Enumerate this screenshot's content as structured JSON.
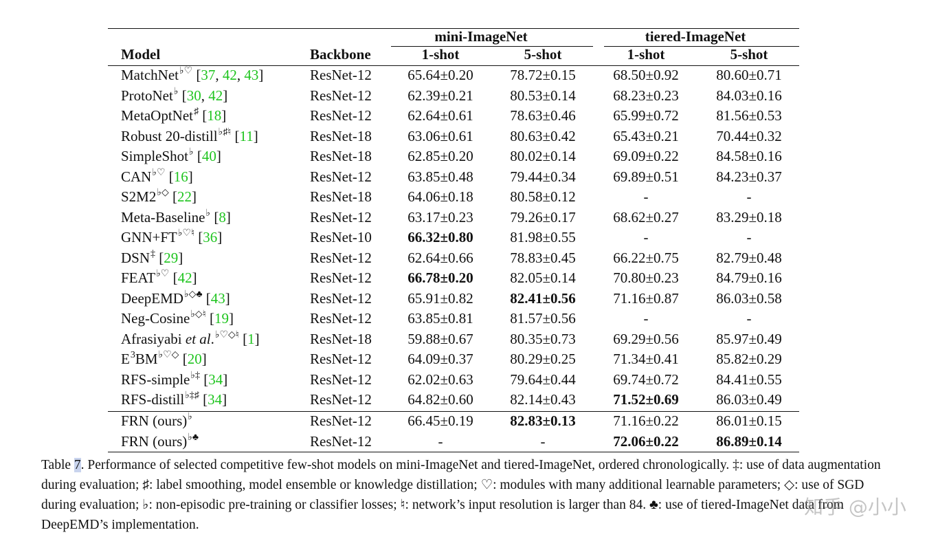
{
  "header": {
    "group_mini": "mini-ImageNet",
    "group_tiered": "tiered-ImageNet",
    "model": "Model",
    "backbone": "Backbone",
    "one_shot": "1-shot",
    "five_shot": "5-shot"
  },
  "rows": [
    {
      "name": "MatchNet",
      "sup": "♭♡",
      "refs": [
        "37",
        "42",
        "43"
      ],
      "backbone": "ResNet-12",
      "values": [
        "65.64±0.20",
        "78.72±0.15",
        "68.50±0.92",
        "80.60±0.71"
      ],
      "bold": [
        false,
        false,
        false,
        false
      ]
    },
    {
      "name": "ProtoNet",
      "sup": "♭",
      "refs": [
        "30",
        "42"
      ],
      "backbone": "ResNet-12",
      "values": [
        "62.39±0.21",
        "80.53±0.14",
        "68.23±0.23",
        "84.03±0.16"
      ],
      "bold": [
        false,
        false,
        false,
        false
      ]
    },
    {
      "name": "MetaOptNet",
      "sup": "♯",
      "refs": [
        "18"
      ],
      "backbone": "ResNet-12",
      "values": [
        "62.64±0.61",
        "78.63±0.46",
        "65.99±0.72",
        "81.56±0.53"
      ],
      "bold": [
        false,
        false,
        false,
        false
      ]
    },
    {
      "name": "Robust 20-distill",
      "sup": "♭♯♮",
      "refs": [
        "11"
      ],
      "backbone": "ResNet-18",
      "values": [
        "63.06±0.61",
        "80.63±0.42",
        "65.43±0.21",
        "70.44±0.32"
      ],
      "bold": [
        false,
        false,
        false,
        false
      ]
    },
    {
      "name": "SimpleShot",
      "sup": "♭",
      "refs": [
        "40"
      ],
      "backbone": "ResNet-18",
      "values": [
        "62.85±0.20",
        "80.02±0.14",
        "69.09±0.22",
        "84.58±0.16"
      ],
      "bold": [
        false,
        false,
        false,
        false
      ]
    },
    {
      "name": "CAN",
      "sup": "♭♡",
      "refs": [
        "16"
      ],
      "backbone": "ResNet-12",
      "values": [
        "63.85±0.48",
        "79.44±0.34",
        "69.89±0.51",
        "84.23±0.37"
      ],
      "bold": [
        false,
        false,
        false,
        false
      ]
    },
    {
      "name": "S2M2",
      "sup": "♭◇",
      "refs": [
        "22"
      ],
      "backbone": "ResNet-18",
      "values": [
        "64.06±0.18",
        "80.58±0.12",
        "-",
        "-"
      ],
      "bold": [
        false,
        false,
        false,
        false
      ]
    },
    {
      "name": "Meta-Baseline",
      "sup": "♭",
      "refs": [
        "8"
      ],
      "backbone": "ResNet-12",
      "values": [
        "63.17±0.23",
        "79.26±0.17",
        "68.62±0.27",
        "83.29±0.18"
      ],
      "bold": [
        false,
        false,
        false,
        false
      ]
    },
    {
      "name": "GNN+FT",
      "sup": "♭♡♮",
      "refs": [
        "36"
      ],
      "backbone": "ResNet-10",
      "values": [
        "66.32±0.80",
        "81.98±0.55",
        "-",
        "-"
      ],
      "bold": [
        true,
        false,
        false,
        false
      ]
    },
    {
      "name": "DSN",
      "sup": "‡",
      "refs": [
        "29"
      ],
      "backbone": "ResNet-12",
      "values": [
        "62.64±0.66",
        "78.83±0.45",
        "66.22±0.75",
        "82.79±0.48"
      ],
      "bold": [
        false,
        false,
        false,
        false
      ]
    },
    {
      "name": "FEAT",
      "sup": "♭♡",
      "refs": [
        "42"
      ],
      "backbone": "ResNet-12",
      "values": [
        "66.78±0.20",
        "82.05±0.14",
        "70.80±0.23",
        "84.79±0.16"
      ],
      "bold": [
        true,
        false,
        false,
        false
      ]
    },
    {
      "name": "DeepEMD",
      "sup": "♭◇♣",
      "refs": [
        "43"
      ],
      "backbone": "ResNet-12",
      "values": [
        "65.91±0.82",
        "82.41±0.56",
        "71.16±0.87",
        "86.03±0.58"
      ],
      "bold": [
        false,
        true,
        false,
        false
      ]
    },
    {
      "name": "Neg-Cosine",
      "sup": "♭◇♮",
      "refs": [
        "19"
      ],
      "backbone": "ResNet-12",
      "values": [
        "63.85±0.81",
        "81.57±0.56",
        "-",
        "-"
      ],
      "bold": [
        false,
        false,
        false,
        false
      ]
    },
    {
      "name": "Afrasiyabi ",
      "name_italic": "et al",
      "name_tail": ".",
      "sup": "♭♡◇♮",
      "refs": [
        "1"
      ],
      "backbone": "ResNet-18",
      "values": [
        "59.88±0.67",
        "80.35±0.73",
        "69.29±0.56",
        "85.97±0.49"
      ],
      "bold": [
        false,
        false,
        false,
        false
      ]
    },
    {
      "name": "E",
      "name_sup": "3",
      "name_tail": "BM",
      "sup": "♭♡◇",
      "refs": [
        "20"
      ],
      "backbone": "ResNet-12",
      "values": [
        "64.09±0.37",
        "80.29±0.25",
        "71.34±0.41",
        "85.82±0.29"
      ],
      "bold": [
        false,
        false,
        false,
        false
      ]
    },
    {
      "name": "RFS-simple",
      "sup": "♭‡",
      "refs": [
        "34"
      ],
      "backbone": "ResNet-12",
      "values": [
        "62.02±0.63",
        "79.64±0.44",
        "69.74±0.72",
        "84.41±0.55"
      ],
      "bold": [
        false,
        false,
        false,
        false
      ]
    },
    {
      "name": "RFS-distill",
      "sup": "♭‡♯",
      "refs": [
        "34"
      ],
      "backbone": "ResNet-12",
      "values": [
        "64.82±0.60",
        "82.14±0.43",
        "71.52±0.69",
        "86.03±0.49"
      ],
      "bold": [
        false,
        false,
        true,
        false
      ]
    },
    {
      "name": "FRN (ours)",
      "sup": "♭",
      "refs": [],
      "backbone": "ResNet-12",
      "values": [
        "66.45±0.19",
        "82.83±0.13",
        "71.16±0.22",
        "86.01±0.15"
      ],
      "bold": [
        false,
        true,
        false,
        false
      ]
    },
    {
      "name": "FRN (ours)",
      "sup": "♭♣",
      "refs": [],
      "backbone": "ResNet-12",
      "values": [
        "-",
        "-",
        "72.06±0.22",
        "86.89±0.14"
      ],
      "bold": [
        false,
        false,
        true,
        true
      ]
    }
  ],
  "caption": {
    "label_prefix": "Table ",
    "label_num": "7",
    "text": ". Performance of selected competitive few-shot models on mini-ImageNet and tiered-ImageNet, ordered chronologically. ‡: use of data augmentation during evaluation; ♯: label smoothing, model ensemble or knowledge distillation; ♡: modules with many additional learnable parameters; ◇: use of SGD during evaluation; ♭: non-episodic pre-training or classifier losses; ♮: network’s input resolution is larger than 84. ♣: use of tiered-ImageNet data from DeepEMD’s implementation."
  },
  "watermark": "知乎 @小小",
  "colors": {
    "ref": "#1ec41e",
    "text": "#111111"
  }
}
